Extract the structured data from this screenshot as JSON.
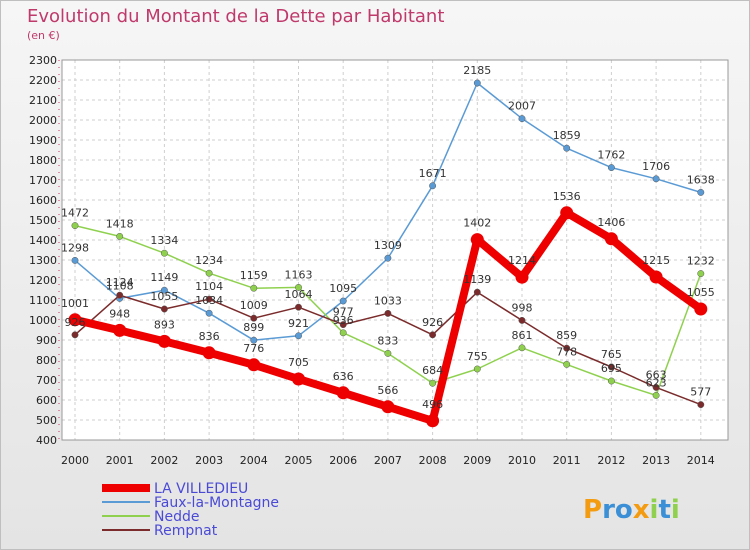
{
  "chart_data": {
    "type": "line",
    "title": "Evolution du Montant de la Dette par Habitant",
    "subtitle": "(en €)",
    "x": [
      2000,
      2001,
      2002,
      2003,
      2004,
      2005,
      2006,
      2007,
      2008,
      2009,
      2010,
      2011,
      2012,
      2013,
      2014
    ],
    "ylim": [
      400,
      2300
    ],
    "y_ticks": [
      400,
      500,
      600,
      700,
      800,
      900,
      1000,
      1100,
      1200,
      1300,
      1400,
      1500,
      1600,
      1700,
      1800,
      1900,
      2000,
      2100,
      2200,
      2300
    ],
    "grid": true,
    "legend_position": "bottom-left",
    "series": [
      {
        "name": "Faux-la-Montagne",
        "color": "#5b9bd5",
        "values": [
          1298,
          1108,
          1149,
          1034,
          899,
          921,
          1095,
          1309,
          1671,
          2185,
          2007,
          1859,
          1762,
          1706,
          1638
        ]
      },
      {
        "name": "Nedde",
        "color": "#8fd14f",
        "values": [
          1472,
          1418,
          1334,
          1234,
          1159,
          1163,
          936,
          833,
          684,
          755,
          861,
          778,
          695,
          623,
          1232
        ]
      },
      {
        "name": "Rempnat",
        "color": "#7b2b2b",
        "values": [
          926,
          1124,
          1055,
          1104,
          1009,
          1064,
          977,
          1033,
          926,
          1139,
          998,
          859,
          765,
          663,
          577
        ]
      },
      {
        "name": "LA VILLEDIEU",
        "color": "#ee0000",
        "values": [
          1001,
          948,
          893,
          836,
          776,
          705,
          636,
          566,
          496,
          1402,
          1214,
          1536,
          1406,
          1215,
          1055
        ]
      }
    ]
  },
  "logo": {
    "text": "Proxiti"
  }
}
